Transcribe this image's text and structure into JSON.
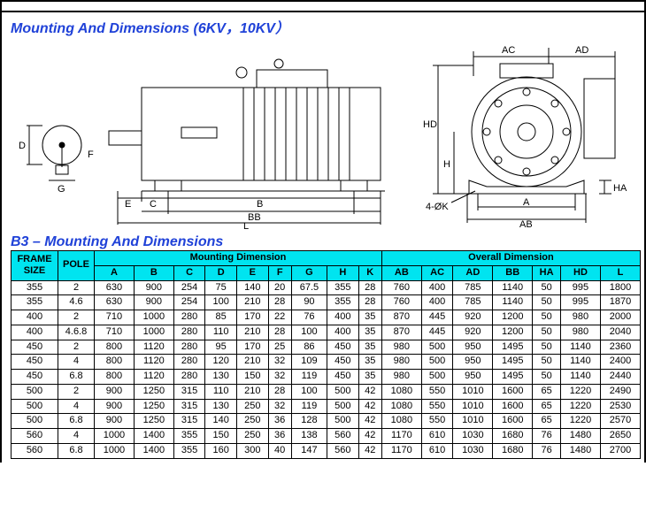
{
  "heading1": "Mounting And Dimensions (6KV，10KV）",
  "heading2": "B3 – Mounting And Dimensions",
  "diagram_labels": {
    "D": "D",
    "F": "F",
    "G": "G",
    "E": "E",
    "C": "C",
    "B": "B",
    "BB": "BB",
    "L": "L",
    "AC": "AC",
    "AD": "AD",
    "HD": "HD",
    "H": "H",
    "A": "A",
    "AB": "AB",
    "HA": "HA",
    "K": "4-ØK"
  },
  "colors": {
    "heading": "#2042d8",
    "thead_bg": "#00e4f0",
    "border": "#000000",
    "background": "#ffffff"
  },
  "table": {
    "header_groups": {
      "frame": "FRAME SIZE",
      "pole": "POLE",
      "mount": "Mounting Dimension",
      "overall": "Overall Dimension"
    },
    "columns": [
      "A",
      "B",
      "C",
      "D",
      "E",
      "F",
      "G",
      "H",
      "K",
      "AB",
      "AC",
      "AD",
      "BB",
      "HA",
      "HD",
      "L"
    ],
    "rows": [
      {
        "frame": "355",
        "pole": "2",
        "v": [
          "630",
          "900",
          "254",
          "75",
          "140",
          "20",
          "67.5",
          "355",
          "28",
          "760",
          "400",
          "785",
          "1140",
          "50",
          "995",
          "1800"
        ]
      },
      {
        "frame": "355",
        "pole": "4.6",
        "v": [
          "630",
          "900",
          "254",
          "100",
          "210",
          "28",
          "90",
          "355",
          "28",
          "760",
          "400",
          "785",
          "1140",
          "50",
          "995",
          "1870"
        ]
      },
      {
        "frame": "400",
        "pole": "2",
        "v": [
          "710",
          "1000",
          "280",
          "85",
          "170",
          "22",
          "76",
          "400",
          "35",
          "870",
          "445",
          "920",
          "1200",
          "50",
          "980",
          "2000"
        ]
      },
      {
        "frame": "400",
        "pole": "4.6.8",
        "v": [
          "710",
          "1000",
          "280",
          "110",
          "210",
          "28",
          "100",
          "400",
          "35",
          "870",
          "445",
          "920",
          "1200",
          "50",
          "980",
          "2040"
        ]
      },
      {
        "frame": "450",
        "pole": "2",
        "v": [
          "800",
          "1120",
          "280",
          "95",
          "170",
          "25",
          "86",
          "450",
          "35",
          "980",
          "500",
          "950",
          "1495",
          "50",
          "1140",
          "2360"
        ]
      },
      {
        "frame": "450",
        "pole": "4",
        "v": [
          "800",
          "1120",
          "280",
          "120",
          "210",
          "32",
          "109",
          "450",
          "35",
          "980",
          "500",
          "950",
          "1495",
          "50",
          "1140",
          "2400"
        ]
      },
      {
        "frame": "450",
        "pole": "6.8",
        "v": [
          "800",
          "1120",
          "280",
          "130",
          "150",
          "32",
          "119",
          "450",
          "35",
          "980",
          "500",
          "950",
          "1495",
          "50",
          "1140",
          "2440"
        ]
      },
      {
        "frame": "500",
        "pole": "2",
        "v": [
          "900",
          "1250",
          "315",
          "110",
          "210",
          "28",
          "100",
          "500",
          "42",
          "1080",
          "550",
          "1010",
          "1600",
          "65",
          "1220",
          "2490"
        ]
      },
      {
        "frame": "500",
        "pole": "4",
        "v": [
          "900",
          "1250",
          "315",
          "130",
          "250",
          "32",
          "119",
          "500",
          "42",
          "1080",
          "550",
          "1010",
          "1600",
          "65",
          "1220",
          "2530"
        ]
      },
      {
        "frame": "500",
        "pole": "6.8",
        "v": [
          "900",
          "1250",
          "315",
          "140",
          "250",
          "36",
          "128",
          "500",
          "42",
          "1080",
          "550",
          "1010",
          "1600",
          "65",
          "1220",
          "2570"
        ]
      },
      {
        "frame": "560",
        "pole": "4",
        "v": [
          "1000",
          "1400",
          "355",
          "150",
          "250",
          "36",
          "138",
          "560",
          "42",
          "1170",
          "610",
          "1030",
          "1680",
          "76",
          "1480",
          "2650"
        ]
      },
      {
        "frame": "560",
        "pole": "6.8",
        "v": [
          "1000",
          "1400",
          "355",
          "160",
          "300",
          "40",
          "147",
          "560",
          "42",
          "1170",
          "610",
          "1030",
          "1680",
          "76",
          "1480",
          "2700"
        ]
      }
    ]
  }
}
